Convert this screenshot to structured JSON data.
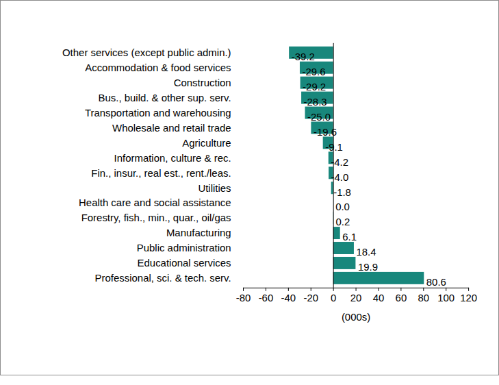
{
  "chart_data": {
    "type": "bar",
    "orientation": "horizontal",
    "categories": [
      "Other services (except public admin.)",
      "Accommodation & food services",
      "Construction",
      "Bus., build. & other sup. serv.",
      "Transportation and warehousing",
      "Wholesale and retail trade",
      "Agriculture",
      "Information, culture & rec.",
      "Fin., insur., real est., rent./leas.",
      "Utilities",
      "Health care and social assistance",
      "Forestry, fish., min., quar., oil/gas",
      "Manufacturing",
      "Public administration",
      "Educational services",
      "Professional, sci. & tech. serv."
    ],
    "values": [
      -39.2,
      -29.6,
      -29.2,
      -28.3,
      -25.0,
      -19.6,
      -9.1,
      -4.2,
      -4.0,
      -1.8,
      0.0,
      0.2,
      6.1,
      18.4,
      19.9,
      80.6
    ],
    "value_labels": [
      "-39.2",
      "-29.6",
      "-29.2",
      "-28.3",
      "-25.0",
      "-19.6",
      "-9.1",
      "-4.2",
      "-4.0",
      "-1.8",
      "0.0",
      "0.2",
      "6.1",
      "18.4",
      "19.9",
      "80.6"
    ],
    "color": "#18877c",
    "x_label": "(000s)",
    "xlim": [
      -80,
      120
    ],
    "xticks": [
      -80,
      -60,
      -40,
      -20,
      0,
      20,
      40,
      60,
      80,
      100,
      120
    ],
    "data_labels": true,
    "grid": false
  }
}
